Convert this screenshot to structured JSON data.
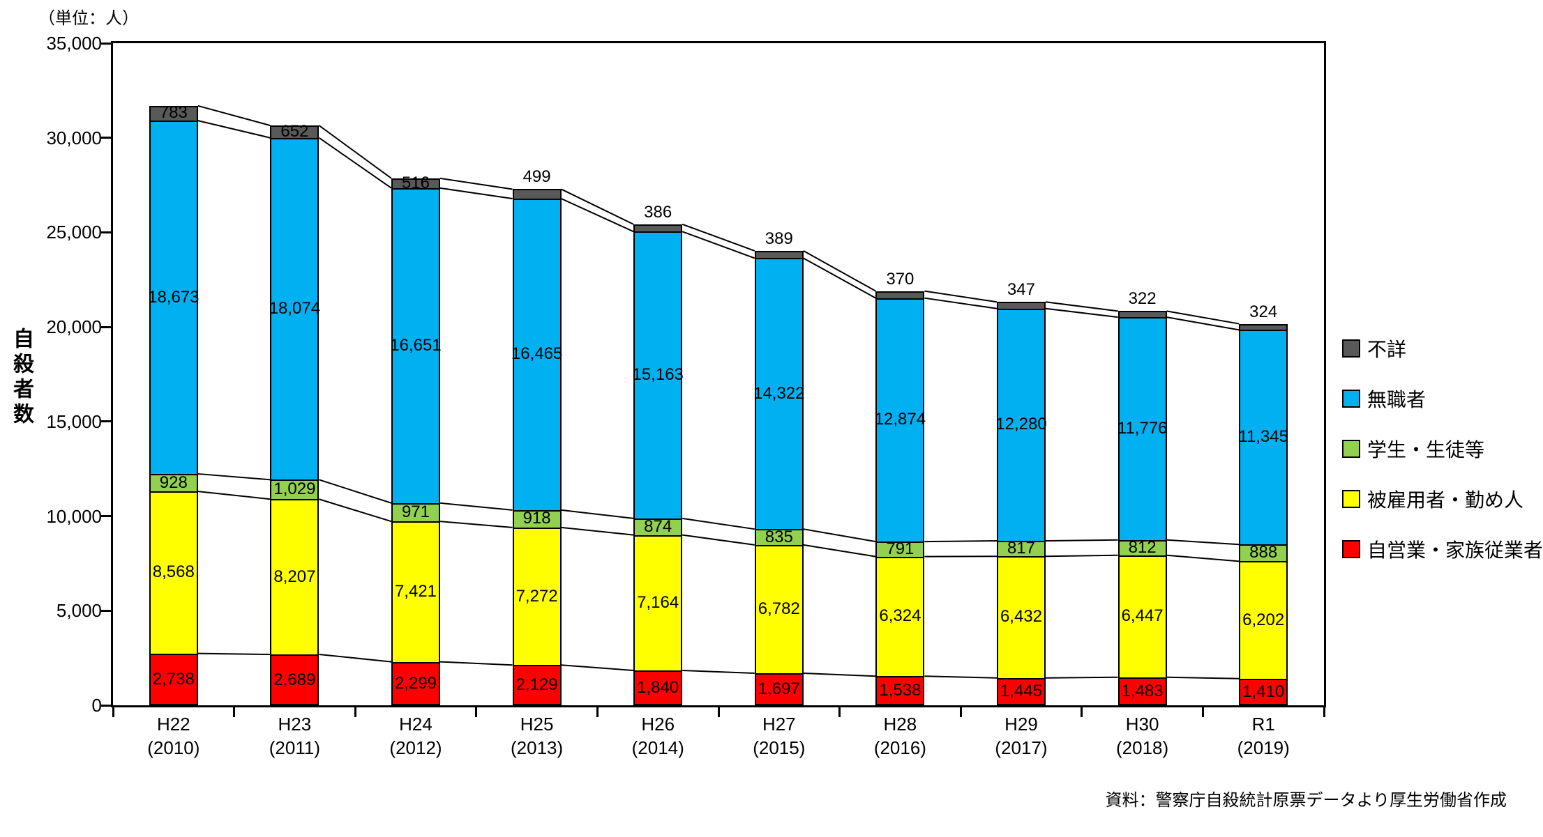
{
  "chart_data": {
    "type": "bar",
    "stacked": true,
    "title": "",
    "unit_note": "（単位：人）",
    "ylabel": "自殺者数",
    "ylim": [
      0,
      35000
    ],
    "ytick_step": 5000,
    "grid": false,
    "legend_position": "right",
    "series_connector_lines": true,
    "categories": [
      {
        "label": "H22",
        "sub": "(2010)"
      },
      {
        "label": "H23",
        "sub": "(2011)"
      },
      {
        "label": "H24",
        "sub": "(2012)"
      },
      {
        "label": "H25",
        "sub": "(2013)"
      },
      {
        "label": "H26",
        "sub": "(2014)"
      },
      {
        "label": "H27",
        "sub": "(2015)"
      },
      {
        "label": "H28",
        "sub": "(2016)"
      },
      {
        "label": "H29",
        "sub": "(2017)"
      },
      {
        "label": "H30",
        "sub": "(2018)"
      },
      {
        "label": "R1",
        "sub": "(2019)"
      }
    ],
    "series": [
      {
        "name": "自営業・家族従業者",
        "color": "#FF0000",
        "values": [
          2738,
          2689,
          2299,
          2129,
          1840,
          1697,
          1538,
          1445,
          1483,
          1410
        ]
      },
      {
        "name": "被雇用者・勤め人",
        "color": "#FFFF00",
        "values": [
          8568,
          8207,
          7421,
          7272,
          7164,
          6782,
          6324,
          6432,
          6447,
          6202
        ]
      },
      {
        "name": "学生・生徒等",
        "color": "#92D050",
        "values": [
          928,
          1029,
          971,
          918,
          874,
          835,
          791,
          817,
          812,
          888
        ]
      },
      {
        "name": "無職者",
        "color": "#00B0F0",
        "values": [
          18673,
          18074,
          16651,
          16465,
          15163,
          14322,
          12874,
          12280,
          11776,
          11345
        ]
      },
      {
        "name": "不詳",
        "color": "#595959",
        "values": [
          783,
          652,
          516,
          499,
          386,
          389,
          370,
          347,
          322,
          324
        ],
        "label_placement": [
          "inside",
          "inside",
          "inside",
          "above",
          "above",
          "above",
          "above",
          "above",
          "above",
          "above"
        ]
      }
    ],
    "legend_top_to_bottom": [
      "不詳",
      "無職者",
      "学生・生徒等",
      "被雇用者・勤め人",
      "自営業・家族従業者"
    ],
    "source": "資料：警察庁自殺統計原票データより厚生労働省作成"
  }
}
